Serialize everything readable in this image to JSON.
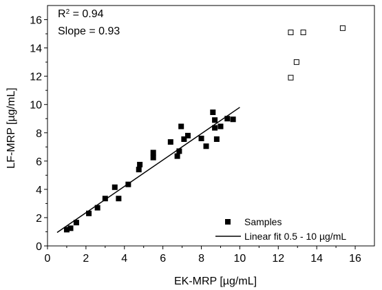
{
  "chart_data": {
    "type": "scatter",
    "xlabel": "EK-MRP [µg/mL]",
    "ylabel": "LF-MRP [µg/mL]",
    "xlim": [
      0,
      17
    ],
    "ylim": [
      0,
      17
    ],
    "xticks": [
      0,
      2,
      4,
      6,
      8,
      10,
      12,
      14,
      16
    ],
    "yticks": [
      0,
      2,
      4,
      6,
      8,
      10,
      12,
      14,
      16
    ],
    "annotations": [
      {
        "name": "r-squared",
        "label": "R",
        "sup": "2",
        "rest": " = 0.94"
      },
      {
        "name": "slope",
        "label": "Slope = 0.93"
      }
    ],
    "legend": {
      "position": "bottom-right",
      "entries": [
        {
          "label": "Samples",
          "marker": "filled-square"
        },
        {
          "label": "Linear fit 0.5 - 10 µg/mL",
          "marker": "line"
        }
      ]
    },
    "series": [
      {
        "marker": "filled-square",
        "points": [
          [
            1.0,
            1.15
          ],
          [
            1.2,
            1.25
          ],
          [
            1.5,
            1.65
          ],
          [
            2.15,
            2.3
          ],
          [
            2.6,
            2.7
          ],
          [
            3.0,
            3.35
          ],
          [
            3.5,
            4.15
          ],
          [
            3.7,
            3.35
          ],
          [
            4.2,
            4.35
          ],
          [
            4.75,
            5.4
          ],
          [
            4.8,
            5.75
          ],
          [
            5.5,
            6.25
          ],
          [
            5.5,
            6.6
          ],
          [
            6.4,
            7.35
          ],
          [
            6.75,
            6.35
          ],
          [
            6.85,
            6.7
          ],
          [
            6.95,
            8.45
          ],
          [
            7.1,
            7.55
          ],
          [
            7.3,
            7.8
          ],
          [
            8.0,
            7.6
          ],
          [
            8.25,
            7.05
          ],
          [
            8.6,
            9.45
          ],
          [
            8.7,
            8.9
          ],
          [
            8.7,
            8.35
          ],
          [
            8.8,
            7.55
          ],
          [
            9.0,
            8.45
          ],
          [
            9.35,
            9.0
          ],
          [
            9.65,
            8.95
          ]
        ]
      },
      {
        "marker": "open-square",
        "points": [
          [
            12.65,
            11.9
          ],
          [
            12.65,
            15.1
          ],
          [
            12.95,
            13.0
          ],
          [
            13.3,
            15.1
          ],
          [
            15.35,
            15.4
          ]
        ]
      },
      {
        "marker": "line",
        "points": [
          [
            0.5,
            0.95
          ],
          [
            10.0,
            9.8
          ]
        ]
      }
    ]
  }
}
